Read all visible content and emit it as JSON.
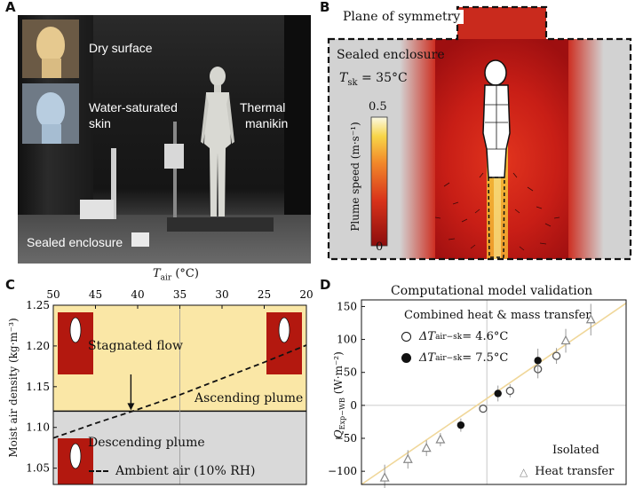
{
  "panels": {
    "a": {
      "letter": "A",
      "labels": {
        "dry": "Dry surface",
        "wet_line1": "Water-saturated",
        "wet_line2": "skin",
        "manikin_line1": "Thermal",
        "manikin_line2": "manikin",
        "enclosure": "Sealed enclosure"
      }
    },
    "b": {
      "letter": "B",
      "plane": "Plane of symmetry",
      "enclosure": "Sealed enclosure",
      "tsk_symbol": "T",
      "tsk_sub": "sk",
      "tsk_value": " = 35°C",
      "colorbar_label": "Plume speed (m·s⁻¹)",
      "colorbar_max": "0.5",
      "colorbar_min": "0"
    },
    "c": {
      "letter": "C",
      "top_axis_label": "T",
      "top_axis_sub": "air",
      "top_axis_unit": " (°C)",
      "ylabel": "Moist air density  (kg·m⁻³)",
      "annotations": {
        "stagnated": "Stagnated flow",
        "ascending": "Ascending plume",
        "descending": "Descending plume",
        "ambient": "Ambient air (10% RH)"
      }
    },
    "d": {
      "letter": "D",
      "title": "Computational model validation",
      "legend_title": "Combined heat & mass transfer",
      "legend1_prefix": "ΔT",
      "legend1_sub": "air−sk",
      "legend1_value": " = 4.6°C",
      "legend2_prefix": "ΔT",
      "legend2_sub": "air−sk",
      "legend2_value": " = 7.5°C",
      "isolated": "Isolated",
      "heat_transfer": "Heat transfer",
      "ylabel_q": "Q",
      "ylabel_sub": "Exp−WB",
      "ylabel_unit": "  (W·m⁻²)"
    }
  },
  "chart_data": [
    {
      "panel": "C",
      "type": "line",
      "top_axis": {
        "ticks": [
          50,
          45,
          40,
          35,
          30,
          25,
          20
        ],
        "range": [
          50,
          20
        ]
      },
      "ylim": [
        1.03,
        1.25
      ],
      "yticks": [
        "1.05",
        "1.10",
        "1.15",
        "1.20",
        "1.25"
      ],
      "ytick_values": [
        1.05,
        1.1,
        1.15,
        1.2,
        1.25
      ],
      "threshold_density": 1.12,
      "reference_temp": 35,
      "series": [
        {
          "name": "Ambient air (10% RH)",
          "x": [
            50,
            45,
            40,
            35,
            30,
            25,
            20
          ],
          "y": [
            1.087,
            1.105,
            1.122,
            1.14,
            1.16,
            1.18,
            1.201
          ]
        }
      ]
    },
    {
      "panel": "D",
      "type": "scatter",
      "ylim": [
        -120,
        160
      ],
      "yticks": [
        "150",
        "100",
        "50",
        "0",
        "−50",
        "−100"
      ],
      "ytick_values": [
        150,
        100,
        50,
        0,
        -50,
        -100
      ],
      "xlim": [
        -135,
        150
      ],
      "fit_line": {
        "x": [
          -135,
          150
        ],
        "y": [
          -120,
          155
        ]
      },
      "series": [
        {
          "name": "ΔTair−sk = 4.6°C",
          "marker": "open-circle",
          "x": [
            -4,
            25,
            55,
            75
          ],
          "y": [
            -5,
            22,
            55,
            75
          ],
          "err": [
            6,
            10,
            14,
            12
          ]
        },
        {
          "name": "ΔTair−sk = 7.5°C",
          "marker": "filled-circle",
          "x": [
            -28,
            12,
            55
          ],
          "y": [
            -30,
            18,
            68
          ],
          "err": [
            10,
            12,
            18
          ]
        },
        {
          "name": "Heat transfer",
          "marker": "open-triangle",
          "x": [
            -110,
            -85,
            -65,
            -50,
            85,
            112
          ],
          "y": [
            -110,
            -82,
            -65,
            -52,
            98,
            130
          ],
          "err": [
            20,
            14,
            12,
            10,
            18,
            24
          ]
        }
      ]
    }
  ]
}
